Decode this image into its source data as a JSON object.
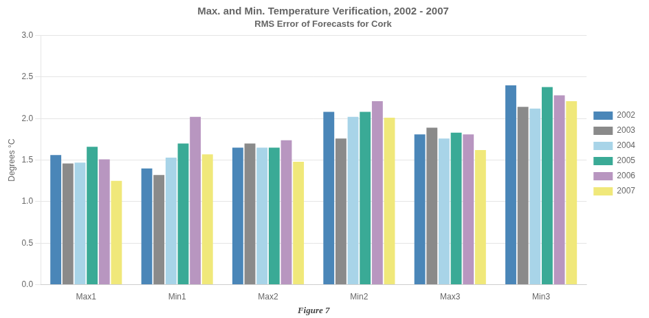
{
  "chart_data": {
    "type": "bar",
    "title": "Max. and Min. Temperature Verification, 2002 - 2007",
    "subtitle": "RMS Error of Forecasts for Cork",
    "annotations": [
      "Figure 7"
    ],
    "categories": [
      "Max1",
      "Min1",
      "Max2",
      "Min2",
      "Max3",
      "Min3"
    ],
    "series": [
      {
        "name": "2002",
        "color": "#4a86b8",
        "values": [
          1.56,
          1.4,
          1.65,
          2.08,
          1.81,
          2.4
        ]
      },
      {
        "name": "2003",
        "color": "#8a8a8a",
        "values": [
          1.46,
          1.32,
          1.7,
          1.76,
          1.89,
          2.14
        ]
      },
      {
        "name": "2004",
        "color": "#a8d4e8",
        "values": [
          1.47,
          1.53,
          1.65,
          2.02,
          1.76,
          2.12
        ]
      },
      {
        "name": "2005",
        "color": "#3aaa96",
        "values": [
          1.66,
          1.7,
          1.65,
          2.08,
          1.83,
          2.38
        ]
      },
      {
        "name": "2006",
        "color": "#b896c0",
        "values": [
          1.51,
          2.02,
          1.74,
          2.21,
          1.81,
          2.28
        ]
      },
      {
        "name": "2007",
        "color": "#f0e87a",
        "values": [
          1.25,
          1.57,
          1.48,
          2.01,
          1.62,
          2.21
        ]
      }
    ],
    "y_label": "Degrees °C",
    "ylim": [
      0.0,
      3.0
    ],
    "yticks": [
      {
        "value": 0,
        "label": "0.0"
      },
      0.5,
      {
        "value": 1,
        "label": "1.0"
      },
      1.5,
      {
        "value": 2,
        "label": "2.0"
      },
      2.5,
      {
        "value": 3,
        "label": "3.0"
      }
    ],
    "grid": true,
    "legend": "right"
  }
}
